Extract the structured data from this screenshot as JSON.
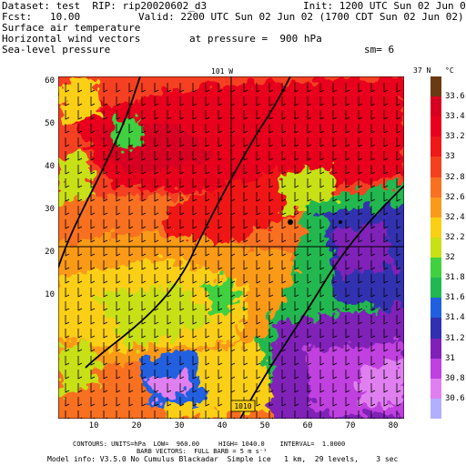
{
  "header": {
    "dataset": "Dataset: test  RIP: rip20020602_d3",
    "init": "Init: 1200 UTC Sun 02 Jun 02",
    "fcst": "Fcst:   10.00",
    "valid": "Valid: 2200 UTC Sun 02 Jun 02 (1700 CDT Sun 02 Jun 02)",
    "field1": "Surface air temperature",
    "field2": "Horizontal wind vectors",
    "field3": "Sea-level pressure",
    "pressure": "at pressure =  900 hPa",
    "sm": "sm= 6"
  },
  "map": {
    "top_label": "101 W",
    "right_label": "37 N",
    "unit": "°C",
    "box_label": "1010",
    "x_ticks": [
      "10",
      "20",
      "30",
      "40",
      "50",
      "60",
      "70",
      "80"
    ],
    "y_ticks": [
      "60",
      "50",
      "40",
      "30",
      "20",
      "10"
    ]
  },
  "colorbar": {
    "levels": [
      "33.6",
      "33.4",
      "33.2",
      "33",
      "32.8",
      "32.6",
      "32.4",
      "32.2",
      "32",
      "31.8",
      "31.6",
      "31.4",
      "31.2",
      "31",
      "30.8",
      "30.6"
    ],
    "colors": [
      "#6b3a12",
      "#d80020",
      "#e8001c",
      "#f01818",
      "#f54020",
      "#f87020",
      "#fb9a18",
      "#fbcf14",
      "#c8e014",
      "#40d040",
      "#20b850",
      "#2060e0",
      "#3030b0",
      "#8020b8",
      "#c040e0",
      "#e080f0",
      "#b0b0ff"
    ]
  },
  "footer": {
    "line1": "CONTOURS: UNITS=hPa  LOW=  960.00     HIGH= 1040.0    INTERVAL=  1.0000",
    "line2": "BARB VECTORS:  FULL BARB = 5 m s⁻¹",
    "line3": "Model info: V3.5.0 No Cumulus Blackadar  Simple ice   1 km,  29 levels,    3 sec"
  }
}
